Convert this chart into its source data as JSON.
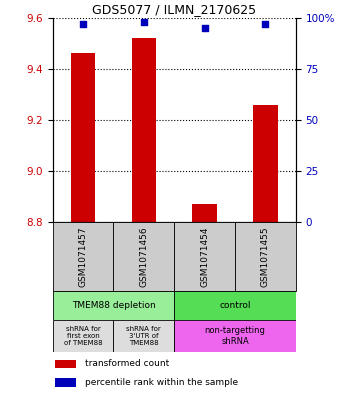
{
  "title": "GDS5077 / ILMN_2170625",
  "samples": [
    "GSM1071457",
    "GSM1071456",
    "GSM1071454",
    "GSM1071455"
  ],
  "red_values": [
    9.46,
    9.52,
    8.87,
    9.26
  ],
  "blue_values": [
    97,
    98,
    95,
    97
  ],
  "ylim_left": [
    8.8,
    9.6
  ],
  "ylim_right": [
    0,
    100
  ],
  "yticks_left": [
    8.8,
    9.0,
    9.2,
    9.4,
    9.6
  ],
  "yticks_right": [
    0,
    25,
    50,
    75,
    100
  ],
  "ytick_labels_right": [
    "0",
    "25",
    "50",
    "75",
    "100%"
  ],
  "bar_color": "#cc0000",
  "dot_color": "#0000bb",
  "bar_width": 0.4,
  "protocol_labels": [
    "TMEM88 depletion",
    "control"
  ],
  "protocol_colors": [
    "#99ee99",
    "#55dd55"
  ],
  "other_labels": [
    "shRNA for\nfirst exon\nof TMEM88",
    "shRNA for\n3'UTR of\nTMEM88",
    "non-targetting\nshRNA"
  ],
  "other_colors_left": "#dddddd",
  "other_color_right": "#ee66ee",
  "legend_red": "transformed count",
  "legend_blue": "percentile rank within the sample",
  "label_color_left": "#cc0000",
  "label_color_right": "#0000bb",
  "sample_box_color": "#cccccc",
  "bg_color": "#ffffff"
}
